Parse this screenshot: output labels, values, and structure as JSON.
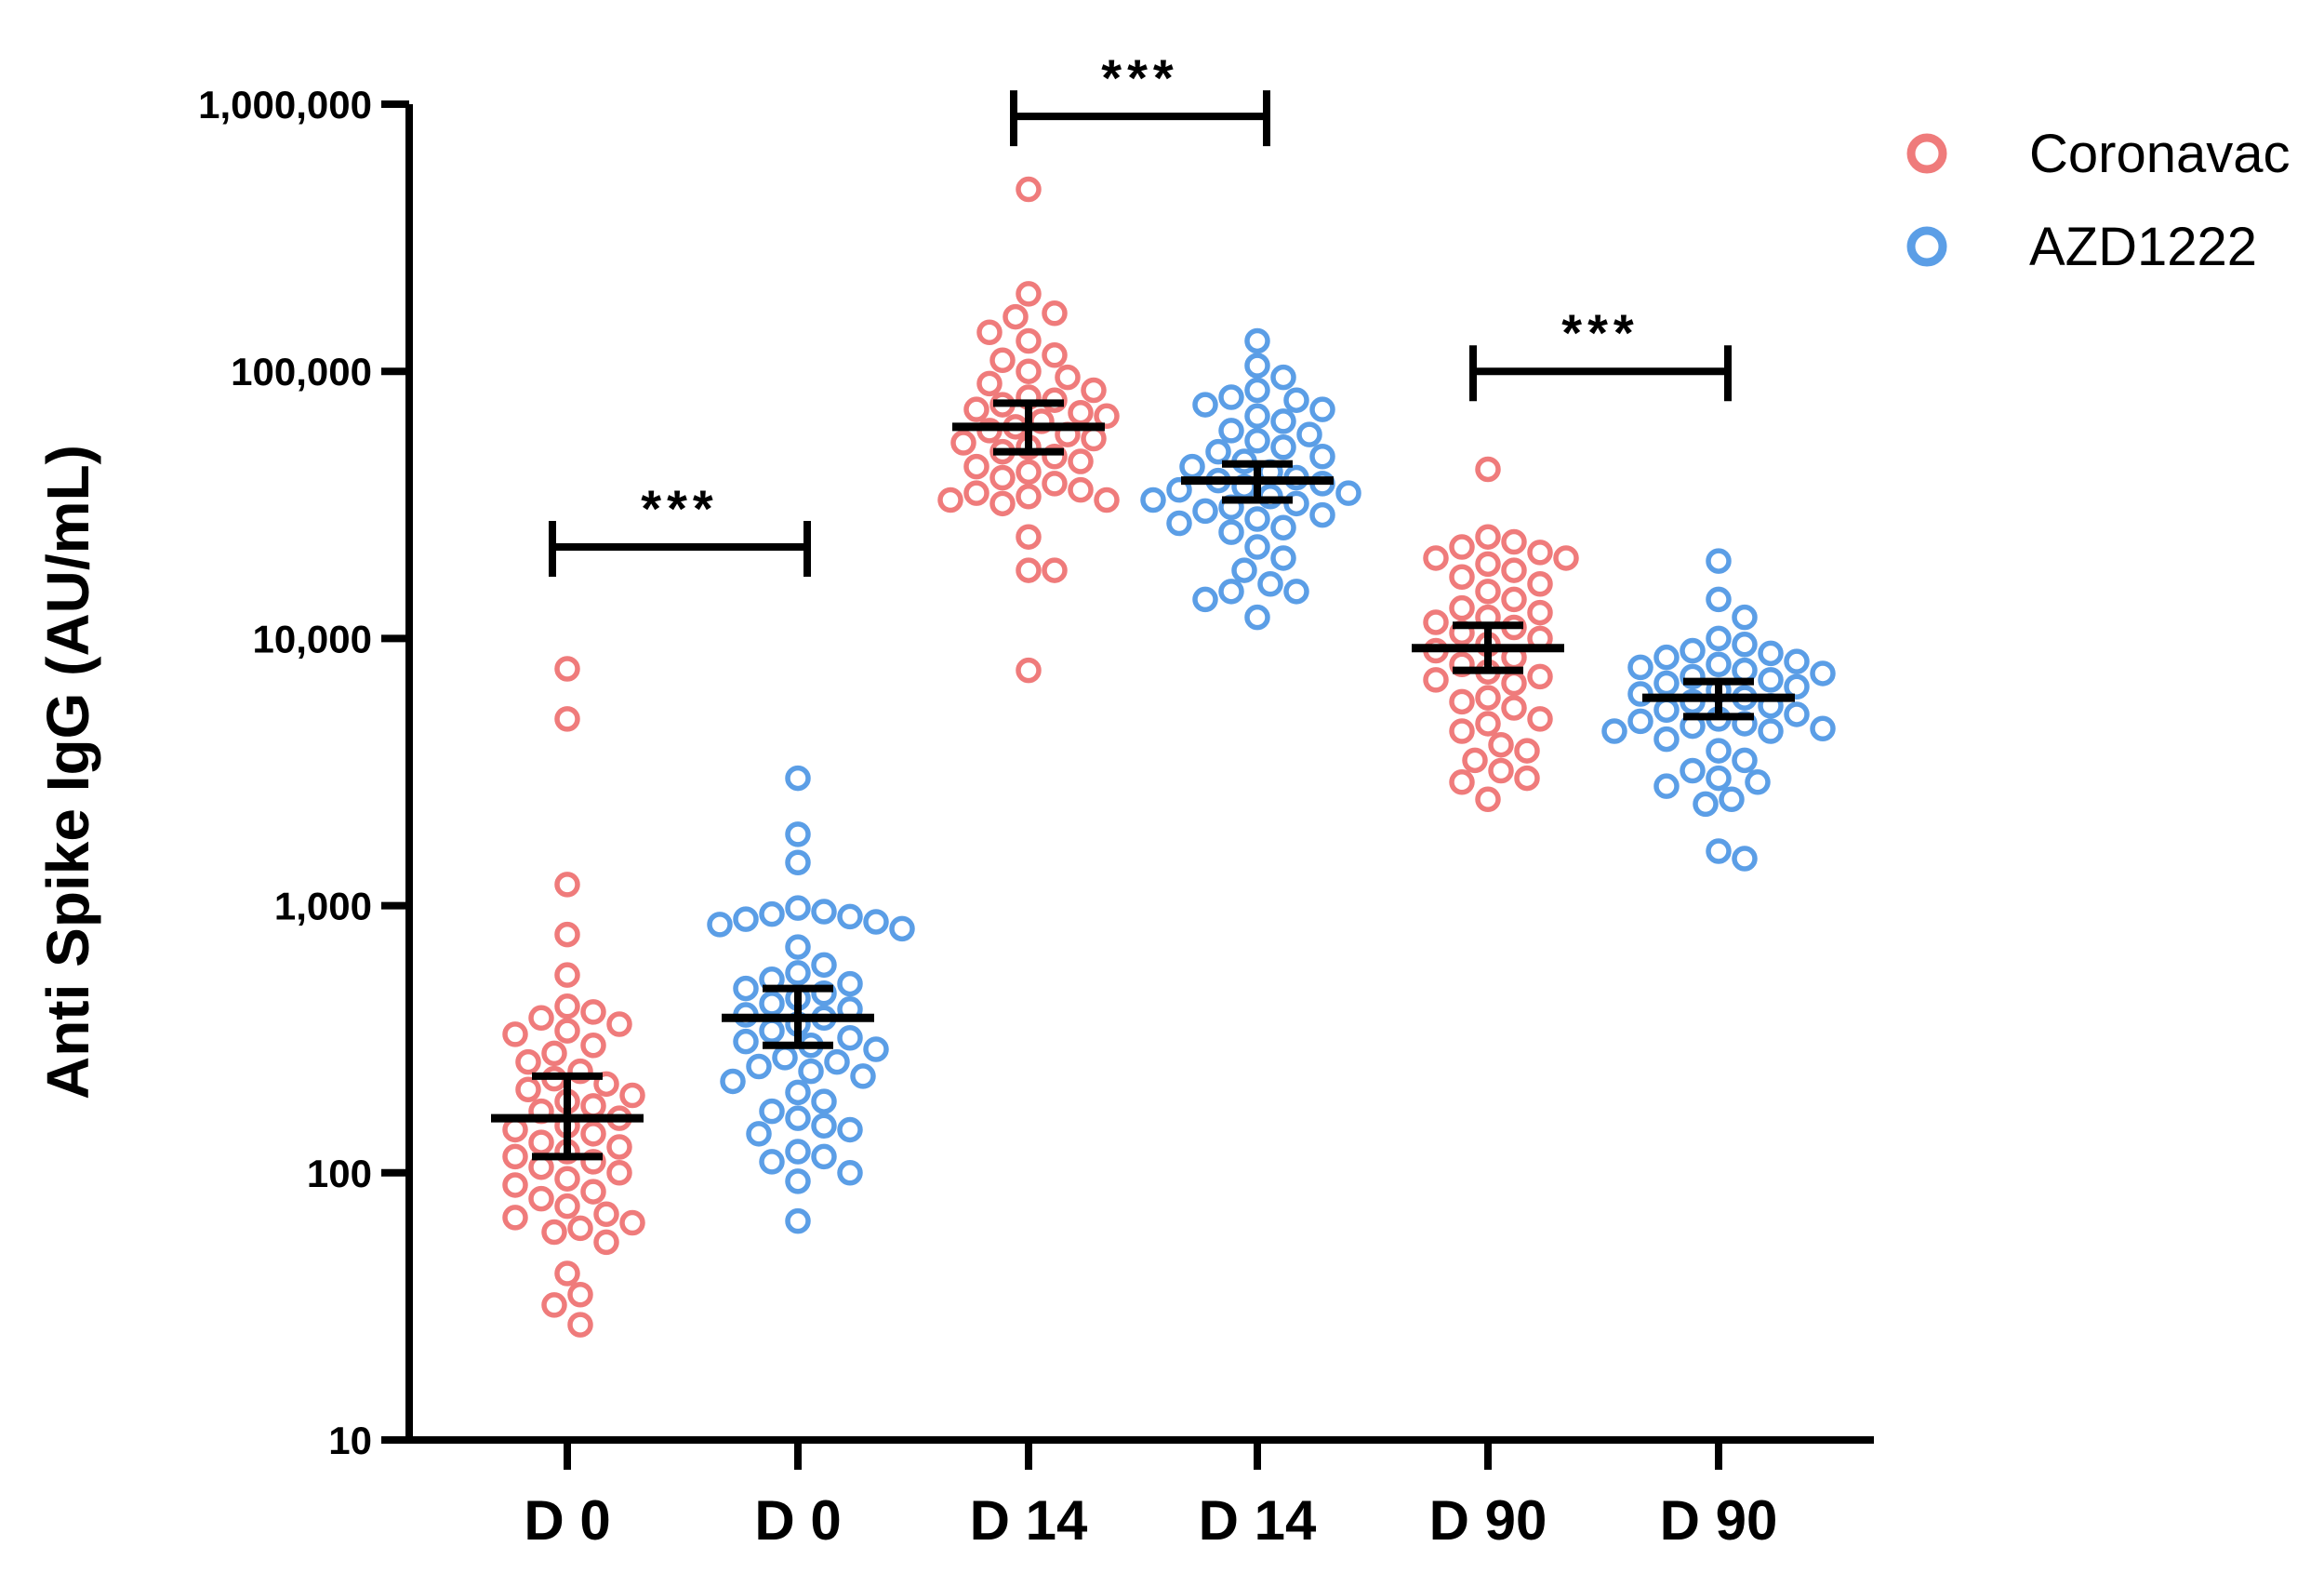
{
  "chart_data": {
    "type": "scatter",
    "subtype": "dot-plot-with-mean-and-ci",
    "title": "",
    "xlabel": "",
    "ylabel": "Anti Spike IgG (AU/mL)",
    "yscale": "log10",
    "ylim": [
      10,
      1000000
    ],
    "y_ticks": [
      {
        "value": 10,
        "label": "10"
      },
      {
        "value": 100,
        "label": "100"
      },
      {
        "value": 1000,
        "label": "1,000"
      },
      {
        "value": 10000,
        "label": "10,000"
      },
      {
        "value": 100000,
        "label": "100,000"
      },
      {
        "value": 1000000,
        "label": "1,000,000"
      }
    ],
    "legend": {
      "placement": "top-right",
      "entries": [
        {
          "name": "Coronavac",
          "color": "#ef7b7b"
        },
        {
          "name": "AZD1222",
          "color": "#5b9ee6"
        }
      ]
    },
    "groups": [
      {
        "label": "D 0",
        "series": "Coronavac",
        "color": "#ef7b7b",
        "center": 160,
        "ci": [
          115,
          230
        ],
        "values": [
          7700,
          5000,
          1200,
          780,
          550,
          420,
          400,
          380,
          360,
          340,
          330,
          300,
          280,
          260,
          240,
          225,
          215,
          205,
          195,
          185,
          178,
          170,
          160,
          150,
          145,
          140,
          130,
          125,
          120,
          115,
          110,
          105,
          100,
          95,
          90,
          85,
          80,
          75,
          70,
          68,
          65,
          62,
          60,
          55,
          42,
          35,
          32,
          27
        ]
      },
      {
        "label": "D 0",
        "series": "AZD1222",
        "color": "#5b9ee6",
        "center": 380,
        "ci": [
          300,
          490
        ],
        "values": [
          3000,
          1850,
          1450,
          980,
          950,
          930,
          910,
          890,
          870,
          850,
          820,
          700,
          600,
          560,
          530,
          510,
          490,
          470,
          450,
          430,
          410,
          390,
          380,
          360,
          340,
          320,
          310,
          300,
          290,
          270,
          260,
          250,
          240,
          230,
          220,
          200,
          185,
          170,
          160,
          150,
          145,
          140,
          120,
          115,
          110,
          100,
          93,
          66
        ]
      },
      {
        "label": "D 14",
        "series": "Coronavac",
        "color": "#ef7b7b",
        "center": 62000,
        "ci": [
          50000,
          76000
        ],
        "values": [
          480000,
          195000,
          165000,
          160000,
          140000,
          130000,
          115000,
          110000,
          100000,
          95000,
          90000,
          85000,
          80000,
          78000,
          75000,
          72000,
          70000,
          68000,
          65000,
          62000,
          60000,
          58000,
          56000,
          54000,
          52000,
          50000,
          48000,
          46000,
          44000,
          42000,
          40000,
          38000,
          36000,
          35000,
          34000,
          33000,
          33000,
          32000,
          24000,
          18000,
          18000,
          7600
        ]
      },
      {
        "label": "D 14",
        "series": "AZD1222",
        "color": "#5b9ee6",
        "center": 39000,
        "ci": [
          33000,
          45000
        ],
        "values": [
          130000,
          105000,
          95000,
          85000,
          80000,
          78000,
          75000,
          72000,
          68000,
          65000,
          60000,
          58000,
          55000,
          52000,
          50000,
          48000,
          46000,
          44000,
          42000,
          40000,
          39000,
          38000,
          37000,
          36000,
          35000,
          34000,
          33000,
          32000,
          31000,
          30000,
          29000,
          28000,
          27000,
          26000,
          25000,
          22000,
          20000,
          18000,
          16000,
          15000,
          15000,
          14000,
          12000
        ]
      },
      {
        "label": "D 90",
        "series": "Coronavac",
        "color": "#ef7b7b",
        "center": 9200,
        "ci": [
          7600,
          11200
        ],
        "values": [
          43000,
          24000,
          23000,
          22000,
          21000,
          20000,
          20000,
          19000,
          18000,
          17000,
          16000,
          15000,
          14000,
          13000,
          12500,
          12000,
          11500,
          11000,
          10500,
          10000,
          9500,
          9000,
          8500,
          8000,
          7500,
          7200,
          7000,
          6800,
          6000,
          5800,
          5500,
          5000,
          4800,
          4500,
          4000,
          3800,
          3500,
          3200,
          3000,
          2900,
          2500
        ]
      },
      {
        "label": "D 90",
        "series": "AZD1222",
        "color": "#5b9ee6",
        "center": 6000,
        "ci": [
          5100,
          6900
        ],
        "values": [
          19500,
          14000,
          12000,
          10000,
          9500,
          9000,
          8800,
          8500,
          8200,
          8000,
          7800,
          7600,
          7400,
          7200,
          7000,
          6800,
          6600,
          6400,
          6200,
          6000,
          5800,
          5600,
          5400,
          5200,
          5000,
          4900,
          4800,
          4700,
          4600,
          4500,
          4500,
          4200,
          3800,
          3500,
          3200,
          3000,
          2900,
          2800,
          2500,
          2400,
          1600,
          1500
        ]
      }
    ],
    "significance": [
      {
        "from": 0,
        "to": 1,
        "y": 22000,
        "label": "***"
      },
      {
        "from": 2,
        "to": 3,
        "y": 900000,
        "label": "***"
      },
      {
        "from": 4,
        "to": 5,
        "y": 100000,
        "label": "***"
      }
    ]
  }
}
